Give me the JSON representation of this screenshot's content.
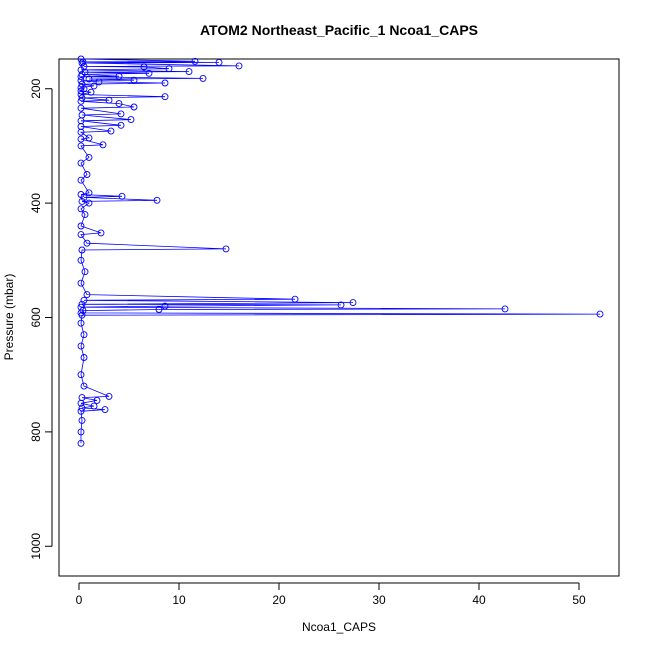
{
  "chart_data": {
    "type": "line",
    "title": "ATOM2 Northeast_Pacific_1 Ncoa1_CAPS",
    "xlabel": "Ncoa1_CAPS",
    "ylabel": "Pressure (mbar)",
    "xlim": [
      -2,
      54
    ],
    "ylim": [
      1052,
      148
    ],
    "y_inverted": true,
    "xticks": [
      0,
      10,
      20,
      30,
      40,
      50
    ],
    "yticks": [
      200,
      400,
      600,
      800,
      1000
    ],
    "grid": false,
    "markers": "open-circle",
    "series": [
      {
        "color": "#0000ff",
        "points": [
          [
            0.2,
            148
          ],
          [
            11.6,
            152
          ],
          [
            0.4,
            153
          ],
          [
            14.0,
            154
          ],
          [
            0.3,
            155
          ],
          [
            16.0,
            160
          ],
          [
            0.5,
            161
          ],
          [
            6.5,
            162
          ],
          [
            9.0,
            165
          ],
          [
            0.2,
            167
          ],
          [
            11.0,
            170
          ],
          [
            0.6,
            171
          ],
          [
            7.0,
            173
          ],
          [
            0.3,
            175
          ],
          [
            4.0,
            178
          ],
          [
            0.2,
            179
          ],
          [
            12.4,
            182
          ],
          [
            1.0,
            183
          ],
          [
            5.5,
            185
          ],
          [
            0.2,
            186
          ],
          [
            2.0,
            188
          ],
          [
            8.6,
            190
          ],
          [
            0.3,
            192
          ],
          [
            1.5,
            195
          ],
          [
            0.2,
            198
          ],
          [
            0.5,
            200
          ],
          [
            0.2,
            204
          ],
          [
            1.2,
            206
          ],
          [
            0.2,
            210
          ],
          [
            8.6,
            214
          ],
          [
            0.3,
            216
          ],
          [
            3.0,
            220
          ],
          [
            0.2,
            222
          ],
          [
            4.0,
            226
          ],
          [
            5.5,
            232
          ],
          [
            0.2,
            234
          ],
          [
            4.2,
            244
          ],
          [
            0.3,
            246
          ],
          [
            5.2,
            254
          ],
          [
            0.2,
            256
          ],
          [
            4.2,
            264
          ],
          [
            0.2,
            266
          ],
          [
            3.2,
            274
          ],
          [
            0.2,
            276
          ],
          [
            1.0,
            286
          ],
          [
            0.2,
            288
          ],
          [
            2.4,
            298
          ],
          [
            0.2,
            300
          ],
          [
            1.0,
            320
          ],
          [
            0.2,
            330
          ],
          [
            0.8,
            350
          ],
          [
            0.2,
            360
          ],
          [
            1.0,
            382
          ],
          [
            0.2,
            385
          ],
          [
            4.3,
            388
          ],
          [
            0.5,
            390
          ],
          [
            7.8,
            395
          ],
          [
            0.3,
            397
          ],
          [
            1.0,
            400
          ],
          [
            0.2,
            410
          ],
          [
            0.6,
            420
          ],
          [
            0.2,
            440
          ],
          [
            2.2,
            452
          ],
          [
            0.2,
            455
          ],
          [
            0.8,
            470
          ],
          [
            14.7,
            480
          ],
          [
            0.3,
            482
          ],
          [
            0.2,
            500
          ],
          [
            0.6,
            520
          ],
          [
            0.2,
            540
          ],
          [
            0.8,
            560
          ],
          [
            21.6,
            568
          ],
          [
            0.5,
            570
          ],
          [
            27.4,
            574
          ],
          [
            0.3,
            577
          ],
          [
            26.2,
            578
          ],
          [
            8.6,
            580
          ],
          [
            0.2,
            582
          ],
          [
            42.6,
            585
          ],
          [
            8.0,
            586
          ],
          [
            0.4,
            588
          ],
          [
            0.2,
            592
          ],
          [
            52.1,
            594
          ],
          [
            0.3,
            596
          ],
          [
            0.2,
            610
          ],
          [
            0.5,
            630
          ],
          [
            0.2,
            650
          ],
          [
            0.5,
            670
          ],
          [
            0.2,
            700
          ],
          [
            0.5,
            720
          ],
          [
            3.0,
            738
          ],
          [
            0.3,
            740
          ],
          [
            1.8,
            745
          ],
          [
            0.2,
            750
          ],
          [
            1.5,
            755
          ],
          [
            0.3,
            758
          ],
          [
            2.6,
            761
          ],
          [
            0.2,
            764
          ],
          [
            0.3,
            780
          ],
          [
            0.2,
            800
          ],
          [
            0.2,
            820
          ]
        ]
      }
    ]
  }
}
